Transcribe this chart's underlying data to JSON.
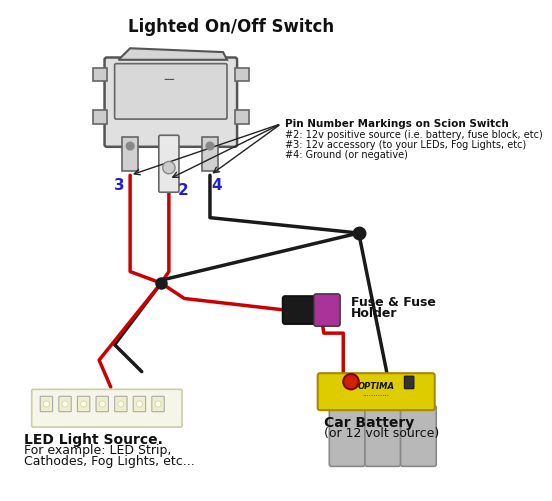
{
  "title": "Lighted On/Off Switch",
  "bg_color": "#ffffff",
  "pin_label_color": "#2222cc",
  "annotation_title": "Pin Number Markings on Scion Switch",
  "annotation_lines": [
    "#2: 12v positive source (i.e. battery, fuse block, etc)",
    "#3: 12v accessory (to your LEDs, Fog Lights, etc)",
    "#4: Ground (or negative)"
  ],
  "led_label_lines": [
    "LED Light Source.",
    "For example: LED Strip,",
    "Cathodes, Fog Lights, etc..."
  ],
  "battery_label_lines": [
    "Car Battery",
    "(or 12 volt source)"
  ],
  "fuse_label_lines": [
    "Fuse & Fuse",
    "Holder"
  ],
  "wire_color_red": "#cc0000",
  "wire_color_black": "#1a1a1a",
  "junction_color": "#111111"
}
